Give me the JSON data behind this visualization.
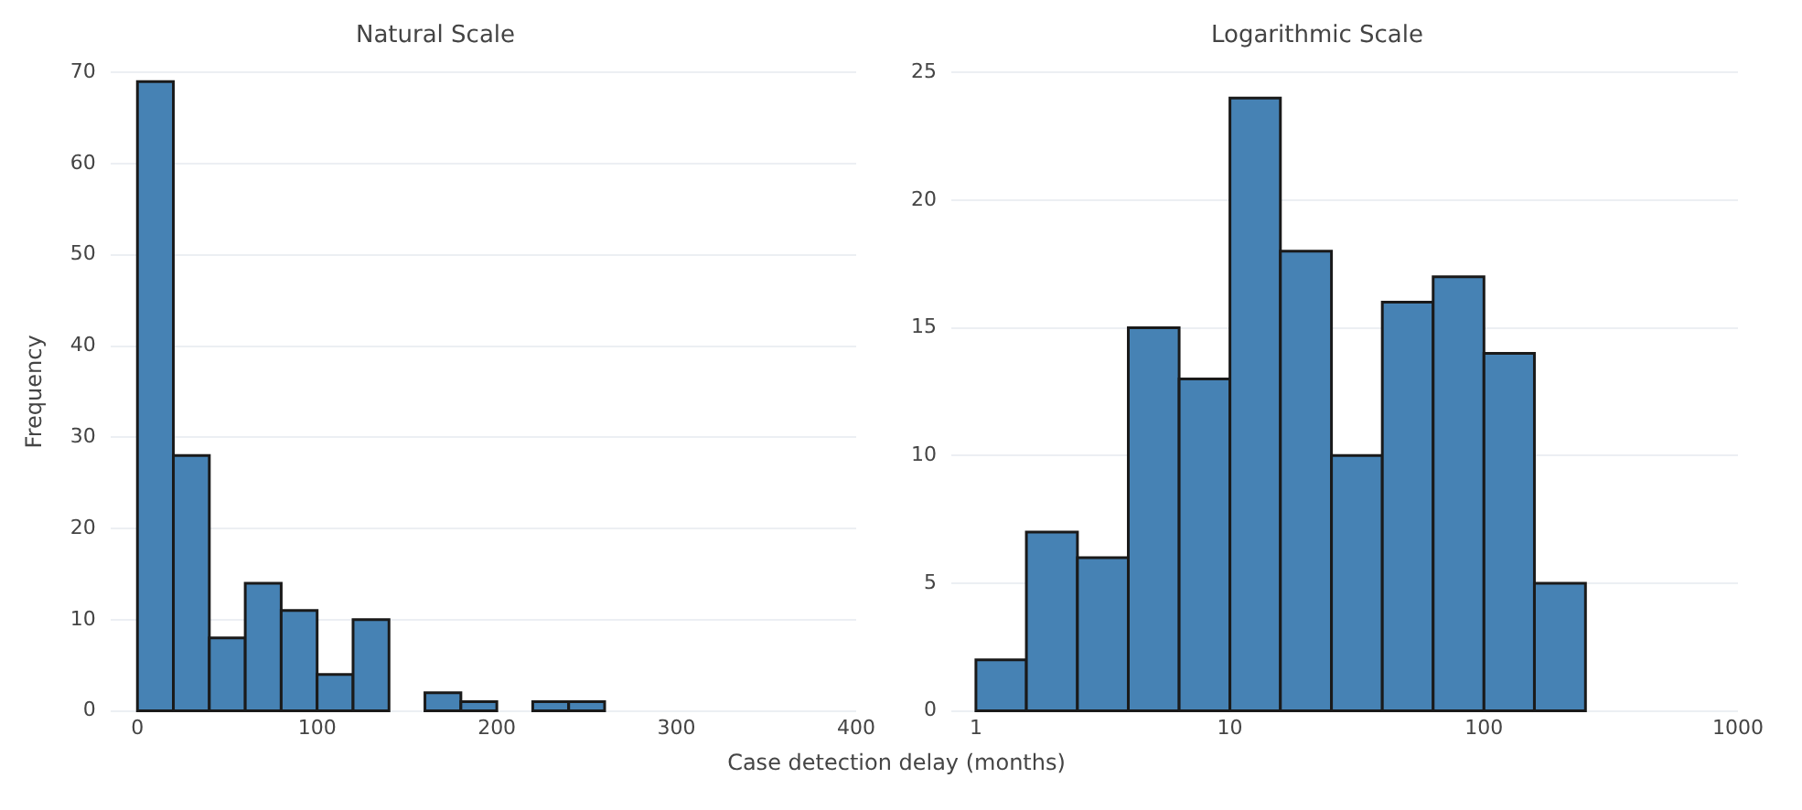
{
  "chart_data": [
    {
      "type": "histogram",
      "title": "Natural Scale",
      "xlabel": "Case detection delay (months)",
      "ylabel": "Frequency",
      "color": "#4682b4",
      "bins": [
        0,
        20,
        40,
        60,
        80,
        100,
        120,
        140,
        160,
        180,
        200,
        220,
        240,
        260
      ],
      "values": [
        69,
        28,
        8,
        14,
        11,
        4,
        10,
        0,
        2,
        1,
        0,
        1,
        1
      ],
      "xlim": [
        -15,
        400
      ],
      "xticks": [
        0,
        100,
        200,
        300,
        400
      ],
      "ylim": [
        0,
        70
      ],
      "yticks": [
        0,
        10,
        20,
        30,
        40,
        50,
        60,
        70
      ],
      "grid": "y"
    },
    {
      "type": "histogram",
      "title": "Logarithmic Scale",
      "color": "#4682b4",
      "log": "x",
      "bins": [
        1,
        1.58,
        2.51,
        3.98,
        6.31,
        10,
        15.8,
        25.1,
        39.8,
        63.1,
        100,
        158,
        251
      ],
      "values": [
        2,
        7,
        6,
        15,
        13,
        24,
        18,
        10,
        16,
        17,
        14,
        5
      ],
      "xlim": [
        0.8,
        1000
      ],
      "xticks": [
        1,
        10,
        100,
        1000
      ],
      "ylim": [
        0,
        25
      ],
      "yticks": [
        0,
        5,
        10,
        15,
        20,
        25
      ],
      "grid": "y"
    }
  ]
}
